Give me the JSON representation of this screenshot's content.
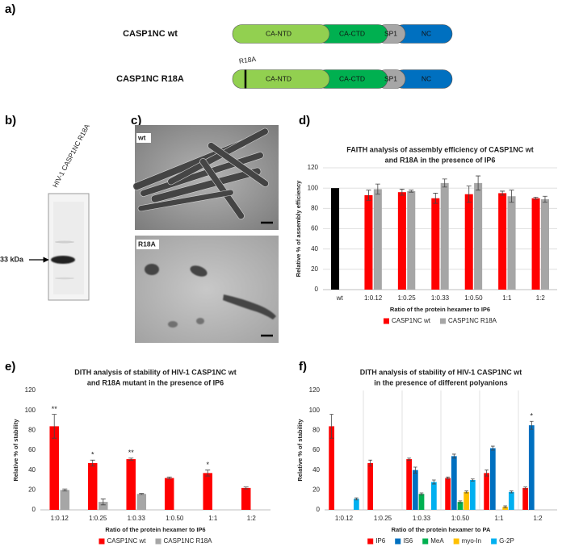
{
  "panel_labels": [
    "a)",
    "b)",
    "c)",
    "d)",
    "e)",
    "f)"
  ],
  "constructs": [
    {
      "name": "CASP1NC wt",
      "domains": [
        "CA-NTD",
        "CA-CTD",
        "SP1",
        "NC"
      ]
    },
    {
      "name": "CASP1NC R18A",
      "mutation": "R18A",
      "domains": [
        "CA-NTD",
        "CA-CTD",
        "SP1",
        "NC"
      ]
    }
  ],
  "gel": {
    "lane_label": "HIV-1 CASP1NC R18A",
    "marker": "33 kDa"
  },
  "micrographs": [
    "wt",
    "R18A"
  ],
  "chart_data": [
    {
      "type": "bar",
      "title": [
        "FAITH analysis of assembly efficiency of CASP1NC wt",
        "and R18A in the presence of IP6"
      ],
      "x_label": "Ratio of the protein hexamer to IP6",
      "y_label": "Relative % of assembly efficiency",
      "categories": [
        "wt",
        "1:0.12",
        "1:0.25",
        "1:0.33",
        "1:0.50",
        "1:1",
        "1:2"
      ],
      "series": [
        {
          "name": "CASP1NC wt",
          "color": "#ff0000",
          "point_colors": [
            "#000000",
            "#ff0000",
            "#ff0000",
            "#ff0000",
            "#ff0000",
            "#ff0000",
            "#ff0000"
          ],
          "values": [
            100,
            93,
            96,
            90,
            94,
            95,
            90
          ],
          "errors": [
            null,
            5,
            3,
            5,
            8,
            2,
            1
          ]
        },
        {
          "name": "CASP1NC R18A",
          "color": "#a6a6a6",
          "values": [
            null,
            99,
            97,
            105,
            105,
            92,
            89
          ],
          "errors": [
            null,
            5,
            1,
            4,
            7,
            6,
            3
          ]
        }
      ],
      "ylim": [
        0,
        120
      ],
      "yticks": [
        0,
        20,
        40,
        60,
        80,
        100,
        120
      ],
      "grid": true,
      "category_dividers": false,
      "legend": "bottom"
    },
    {
      "type": "bar",
      "title": [
        "DITH analysis of stability of HIV-1 CASP1NC wt",
        "and R18A mutant in the presence of IP6"
      ],
      "x_label": "Ratio of the protein hexamer to IP6",
      "y_label": "Relative % of stability",
      "categories": [
        "1:0.12",
        "1:0.25",
        "1:0.33",
        "1:0.50",
        "1:1",
        "1:2"
      ],
      "series": [
        {
          "name": "CASP1NC wt",
          "color": "#ff0000",
          "values": [
            84,
            47,
            51,
            32,
            37,
            22
          ],
          "errors": [
            12,
            3,
            1,
            1,
            3,
            1
          ],
          "annotations": [
            "**",
            "*",
            "**",
            null,
            "*",
            null
          ]
        },
        {
          "name": "CASP1NC R18A",
          "color": "#a6a6a6",
          "values": [
            20,
            8,
            16,
            null,
            null,
            null
          ],
          "errors": [
            1,
            3,
            0.5,
            null,
            null,
            null
          ]
        }
      ],
      "ylim": [
        0,
        120
      ],
      "yticks": [
        0,
        20,
        40,
        60,
        80,
        100,
        120
      ],
      "grid": false,
      "category_dividers": false,
      "legend": "bottom"
    },
    {
      "type": "bar",
      "title": [
        "DITH analysis of stability of HIV-1 CASP1NC wt",
        "in the presence of different polyanions"
      ],
      "x_label": "Ratio of the protein hexamer to PA",
      "y_label": "Relative % of stability",
      "categories": [
        "1:0.12",
        "1:0.25",
        "1:0.33",
        "1:0.50",
        "1:1",
        "1:2"
      ],
      "series": [
        {
          "name": "IP6",
          "color": "#ff0000",
          "values": [
            84,
            47,
            51,
            32,
            37,
            22
          ],
          "errors": [
            12,
            3,
            1,
            1,
            3,
            1
          ]
        },
        {
          "name": "IS6",
          "color": "#0070c0",
          "values": [
            null,
            null,
            40,
            54,
            62,
            85
          ],
          "errors": [
            null,
            null,
            3,
            2,
            2,
            4
          ],
          "annotations": [
            null,
            null,
            null,
            null,
            null,
            "*"
          ]
        },
        {
          "name": "MeA",
          "color": "#00b050",
          "values": [
            null,
            null,
            16,
            8,
            null,
            null
          ],
          "errors": [
            null,
            null,
            1,
            1,
            null,
            null
          ]
        },
        {
          "name": "myo-In",
          "color": "#ffc000",
          "values": [
            null,
            null,
            null,
            18,
            3,
            null
          ],
          "errors": [
            null,
            null,
            null,
            1,
            1,
            null
          ]
        },
        {
          "name": "G-2P",
          "color": "#00b0f0",
          "values": [
            11,
            null,
            28,
            30,
            18,
            null
          ],
          "errors": [
            1,
            null,
            2,
            1,
            1,
            null
          ]
        }
      ],
      "ylim": [
        0,
        120
      ],
      "yticks": [
        0,
        20,
        40,
        60,
        80,
        100,
        120
      ],
      "grid": false,
      "category_dividers": true,
      "legend": "bottom"
    }
  ]
}
